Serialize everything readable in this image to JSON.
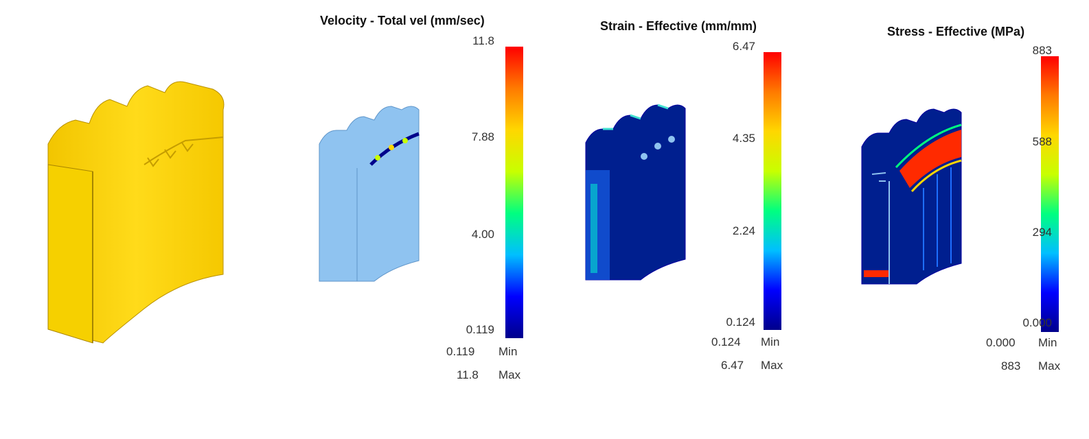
{
  "colors": {
    "gear_yellow": "#ffd700",
    "gear_light_blue": "#8fc3f0",
    "deep_blue": "#001f8f",
    "scale": [
      "#00008b",
      "#0000ff",
      "#00bfff",
      "#00ff80",
      "#c8ff00",
      "#ffd700",
      "#ff7a00",
      "#ff0000"
    ]
  },
  "panels": [
    {
      "title": "Velocity - Total vel (mm/sec)",
      "ticks": [
        "11.8",
        "7.88",
        "4.00",
        "0.119"
      ],
      "min_value": "0.119",
      "min_label": "Min",
      "max_value": "11.8",
      "max_label": "Max"
    },
    {
      "title": "Strain - Effective (mm/mm)",
      "ticks": [
        "6.47",
        "4.35",
        "2.24",
        "0.124"
      ],
      "min_value": "0.124",
      "min_label": "Min",
      "max_value": "6.47",
      "max_label": "Max"
    },
    {
      "title": "Stress - Effective (MPa)",
      "ticks": [
        "883",
        "588",
        "294",
        "0.000"
      ],
      "min_value": "0.000",
      "min_label": "Min",
      "max_value": "883",
      "max_label": "Max"
    }
  ]
}
